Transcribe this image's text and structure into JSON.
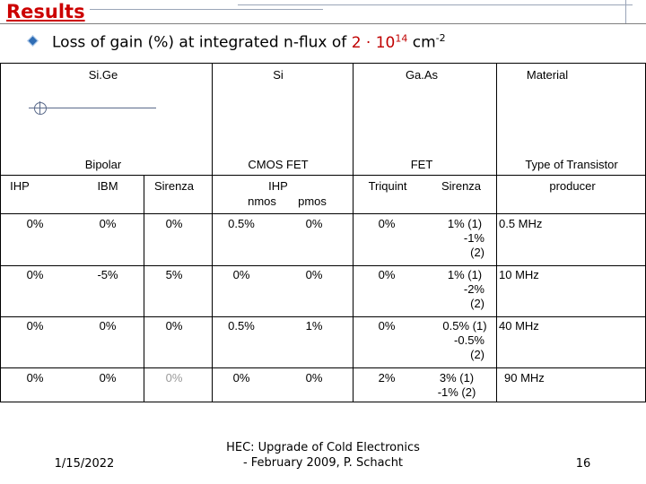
{
  "title": "Results",
  "subtitle": {
    "text": "Loss of gain (%) at integrated n-flux of ",
    "value": "2 · 10",
    "exp": "14",
    "unit": " cm",
    "unit_exp": "-2"
  },
  "header1": {
    "sige": "Si.Ge",
    "si": "Si",
    "gaas": "Ga.As",
    "material": "Material"
  },
  "header2": {
    "bipolar": "Bipolar",
    "cmos": "CMOS FET",
    "fet": "FET",
    "type": "Type of Transistor"
  },
  "header3": {
    "ihp": "IHP",
    "ibm": "IBM",
    "sirenza": "Sirenza",
    "ihp2": "IHP",
    "nmos": "nmos",
    "pmos": "pmos",
    "triquint": "Triquint",
    "sirenza2": "Sirenza",
    "producer": "producer"
  },
  "rows": [
    {
      "c": [
        "0%",
        "0%",
        "0%",
        "0.5%",
        "0%",
        "0%"
      ],
      "s1": "1% (1)",
      "s2": "-1%",
      "s3": "(2)",
      "freq": "0.5 MHz"
    },
    {
      "c": [
        "0%",
        "-5%",
        "5%",
        "0%",
        "0%",
        "0%"
      ],
      "s1": "1% (1)",
      "s2": "-2%",
      "s3": "(2)",
      "freq": "10 MHz"
    },
    {
      "c": [
        "0%",
        "0%",
        "0%",
        "0.5%",
        "1%",
        "0%"
      ],
      "s1": "0.5% (1)",
      "s2": "-0.5%",
      "s3": "(2)",
      "freq": "40 MHz"
    },
    {
      "c": [
        "0%",
        "0%",
        "0%",
        "0%",
        "0%",
        "2%"
      ],
      "s1": "3% (1)",
      "s2": "-1% (2)",
      "s3": "",
      "freq": "90 MHz"
    }
  ],
  "footer": {
    "date": "1/15/2022",
    "line1": "HEC: Upgrade of Cold Electronics",
    "line2": "- February 2009, P. Schacht",
    "page": "16"
  }
}
